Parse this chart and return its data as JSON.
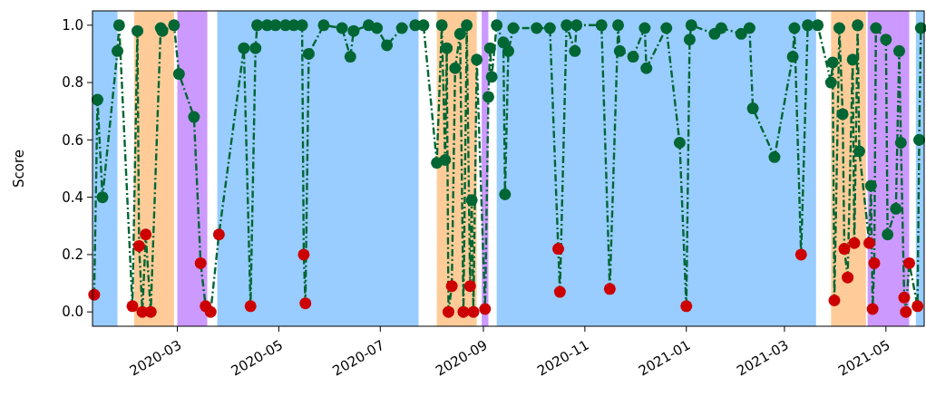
{
  "chart_data": {
    "type": "line",
    "ylabel": "Score",
    "xlim": [
      "2020-01-10",
      "2021-05-24"
    ],
    "ylim": [
      -0.05,
      1.05
    ],
    "xticks": [
      {
        "value": "2020-03-01",
        "label": "2020-03"
      },
      {
        "value": "2020-05-01",
        "label": "2020-05"
      },
      {
        "value": "2020-07-01",
        "label": "2020-07"
      },
      {
        "value": "2020-09-01",
        "label": "2020-09"
      },
      {
        "value": "2020-11-01",
        "label": "2020-11"
      },
      {
        "value": "2021-01-01",
        "label": "2021-01"
      },
      {
        "value": "2021-03-01",
        "label": "2021-03"
      },
      {
        "value": "2021-05-01",
        "label": "2021-05"
      }
    ],
    "yticks": [
      {
        "value": 0,
        "label": "0.0"
      },
      {
        "value": 0.2,
        "label": "0.2"
      },
      {
        "value": 0.4,
        "label": "0.4"
      },
      {
        "value": 0.6,
        "label": "0.6"
      },
      {
        "value": 0.8,
        "label": "0.8"
      },
      {
        "value": 1,
        "label": "1.0"
      }
    ],
    "grid": false,
    "marker": "circle",
    "line_style": "dashed",
    "bands": [
      {
        "axis": "x",
        "from": "2020-01-10",
        "to": "2020-01-25",
        "color": "#99ccff"
      },
      {
        "axis": "x",
        "from": "2020-02-04",
        "to": "2020-02-28",
        "color": "#ffcc99"
      },
      {
        "axis": "x",
        "from": "2020-03-01",
        "to": "2020-03-19",
        "color": "#cc99ff"
      },
      {
        "axis": "x",
        "from": "2020-03-25",
        "to": "2020-07-24",
        "color": "#99ccff"
      },
      {
        "axis": "x",
        "from": "2020-08-04",
        "to": "2020-08-28",
        "color": "#ffcc99"
      },
      {
        "axis": "x",
        "from": "2020-08-31",
        "to": "2020-09-04",
        "color": "#cc99ff"
      },
      {
        "axis": "x",
        "from": "2020-09-09",
        "to": "2021-03-20",
        "color": "#99ccff"
      },
      {
        "axis": "x",
        "from": "2021-03-29",
        "to": "2021-04-19",
        "color": "#ffcc99"
      },
      {
        "axis": "x",
        "from": "2021-04-20",
        "to": "2021-05-15",
        "color": "#cc99ff"
      },
      {
        "axis": "x",
        "from": "2021-05-19",
        "to": "2021-05-24",
        "color": "#99ccff"
      }
    ],
    "series": [
      {
        "color": "#006633",
        "x": [
          "2020-01-11",
          "2020-01-13",
          "2020-01-16",
          "2020-01-25",
          "2020-01-26",
          "2020-02-03",
          "2020-02-06",
          "2020-02-07",
          "2020-02-09",
          "2020-02-11",
          "2020-02-14",
          "2020-02-20",
          "2020-02-21",
          "2020-02-28",
          "2020-03-02",
          "2020-03-11",
          "2020-03-15",
          "2020-03-18",
          "2020-03-21",
          "2020-03-26",
          "2020-04-10",
          "2020-04-14",
          "2020-04-17",
          "2020-04-18",
          "2020-04-24",
          "2020-04-29",
          "2020-05-05",
          "2020-05-10",
          "2020-05-15",
          "2020-05-16",
          "2020-05-17",
          "2020-05-19",
          "2020-05-28",
          "2020-06-08",
          "2020-06-13",
          "2020-06-15",
          "2020-06-24",
          "2020-06-29",
          "2020-07-05",
          "2020-07-14",
          "2020-07-22",
          "2020-07-27",
          "2020-08-04",
          "2020-08-07",
          "2020-08-09",
          "2020-08-10",
          "2020-08-11",
          "2020-08-13",
          "2020-08-15",
          "2020-08-18",
          "2020-08-20",
          "2020-08-22",
          "2020-08-24",
          "2020-08-25",
          "2020-08-26",
          "2020-08-28",
          "2020-09-02",
          "2020-09-04",
          "2020-09-05",
          "2020-09-06",
          "2020-09-09",
          "2020-09-13",
          "2020-09-14",
          "2020-09-16",
          "2020-09-19",
          "2020-10-03",
          "2020-10-11",
          "2020-10-16",
          "2020-10-17",
          "2020-10-21",
          "2020-10-26",
          "2020-10-27",
          "2020-11-11",
          "2020-11-16",
          "2020-11-21",
          "2020-11-22",
          "2020-11-30",
          "2020-12-07",
          "2020-12-08",
          "2020-12-20",
          "2020-12-28",
          "2021-01-01",
          "2021-01-03",
          "2021-01-04",
          "2021-01-18",
          "2021-01-22",
          "2021-02-03",
          "2021-02-08",
          "2021-02-10",
          "2021-02-23",
          "2021-03-06",
          "2021-03-07",
          "2021-03-11",
          "2021-03-15",
          "2021-03-21",
          "2021-03-29",
          "2021-03-30",
          "2021-03-31",
          "2021-04-03",
          "2021-04-05",
          "2021-04-06",
          "2021-04-08",
          "2021-04-11",
          "2021-04-12",
          "2021-04-14",
          "2021-04-15",
          "2021-04-21",
          "2021-04-22",
          "2021-04-23",
          "2021-04-24",
          "2021-04-25",
          "2021-05-01",
          "2021-05-02",
          "2021-05-07",
          "2021-05-09",
          "2021-05-10",
          "2021-05-12",
          "2021-05-13",
          "2021-05-15",
          "2021-05-20",
          "2021-05-21",
          "2021-05-22"
        ],
        "values": [
          0.06,
          0.74,
          0.4,
          0.91,
          1.0,
          0.02,
          0.98,
          0.23,
          0.0,
          0.27,
          0.0,
          0.99,
          0.98,
          1.0,
          0.83,
          0.68,
          0.17,
          0.02,
          0.0,
          0.27,
          0.92,
          0.02,
          0.92,
          1.0,
          1.0,
          1.0,
          1.0,
          1.0,
          1.0,
          0.2,
          0.03,
          0.9,
          1.0,
          0.99,
          0.89,
          0.98,
          1.0,
          0.99,
          0.93,
          0.99,
          1.0,
          1.0,
          0.52,
          1.0,
          0.53,
          0.92,
          0.0,
          0.09,
          0.85,
          0.97,
          0.0,
          1.0,
          0.09,
          0.39,
          0.0,
          0.88,
          0.01,
          0.75,
          0.92,
          0.82,
          1.0,
          0.94,
          0.41,
          0.91,
          0.99,
          0.99,
          0.99,
          0.22,
          0.07,
          1.0,
          0.91,
          1.0,
          1.0,
          0.08,
          1.0,
          0.91,
          0.89,
          0.99,
          0.85,
          0.99,
          0.59,
          0.02,
          0.95,
          1.0,
          0.97,
          0.99,
          0.97,
          0.99,
          0.71,
          0.54,
          0.89,
          0.99,
          0.2,
          1.0,
          1.0,
          0.8,
          0.87,
          0.04,
          0.99,
          0.69,
          0.22,
          0.12,
          0.88,
          0.24,
          1.0,
          0.56,
          0.24,
          0.44,
          0.01,
          0.17,
          0.99,
          0.95,
          0.27,
          0.36,
          0.91,
          0.59,
          0.05,
          0.0,
          0.17,
          0.02,
          0.6,
          0.99
        ],
        "colors": [
          "#cc0000",
          "#006633",
          "#006633",
          "#006633",
          "#006633",
          "#cc0000",
          "#006633",
          "#cc0000",
          "#cc0000",
          "#cc0000",
          "#cc0000",
          "#006633",
          "#006633",
          "#006633",
          "#006633",
          "#006633",
          "#cc0000",
          "#cc0000",
          "#cc0000",
          "#cc0000",
          "#006633",
          "#cc0000",
          "#006633",
          "#006633",
          "#006633",
          "#006633",
          "#006633",
          "#006633",
          "#006633",
          "#cc0000",
          "#cc0000",
          "#006633",
          "#006633",
          "#006633",
          "#006633",
          "#006633",
          "#006633",
          "#006633",
          "#006633",
          "#006633",
          "#006633",
          "#006633",
          "#006633",
          "#006633",
          "#006633",
          "#006633",
          "#cc0000",
          "#cc0000",
          "#006633",
          "#006633",
          "#cc0000",
          "#006633",
          "#cc0000",
          "#006633",
          "#cc0000",
          "#006633",
          "#cc0000",
          "#006633",
          "#006633",
          "#006633",
          "#006633",
          "#006633",
          "#006633",
          "#006633",
          "#006633",
          "#006633",
          "#006633",
          "#cc0000",
          "#cc0000",
          "#006633",
          "#006633",
          "#006633",
          "#006633",
          "#cc0000",
          "#006633",
          "#006633",
          "#006633",
          "#006633",
          "#006633",
          "#006633",
          "#006633",
          "#cc0000",
          "#006633",
          "#006633",
          "#006633",
          "#006633",
          "#006633",
          "#006633",
          "#006633",
          "#006633",
          "#006633",
          "#006633",
          "#cc0000",
          "#006633",
          "#006633",
          "#006633",
          "#006633",
          "#cc0000",
          "#006633",
          "#006633",
          "#cc0000",
          "#cc0000",
          "#006633",
          "#cc0000",
          "#006633",
          "#006633",
          "#cc0000",
          "#006633",
          "#cc0000",
          "#cc0000",
          "#006633",
          "#006633",
          "#006633",
          "#006633",
          "#006633",
          "#006633",
          "#cc0000",
          "#cc0000",
          "#cc0000",
          "#cc0000",
          "#006633",
          "#006633"
        ]
      }
    ]
  }
}
